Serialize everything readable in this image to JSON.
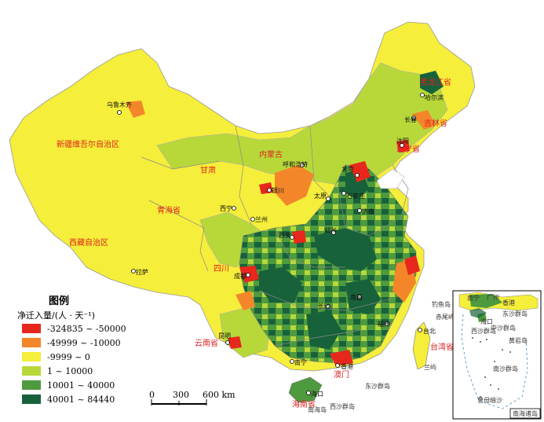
{
  "legend": {
    "title": "图例",
    "subtitle": "净迁入量/(人 · 天⁻¹)",
    "classes": [
      {
        "label": "-324835 ~ -50000",
        "color": "#e8271c"
      },
      {
        "label": "-49999 ~ -10000",
        "color": "#f4862a"
      },
      {
        "label": "-9999 ~ 0",
        "color": "#f5ee3a"
      },
      {
        "label": "1 ~ 10000",
        "color": "#b8d83a"
      },
      {
        "label": "10001 ~ 40000",
        "color": "#4e9a3e"
      },
      {
        "label": "40001 ~ 84440",
        "color": "#17623a"
      }
    ]
  },
  "scale_bar": {
    "labels": [
      "0",
      "300",
      "600 km"
    ]
  },
  "inset": {
    "title": "南海诸岛"
  },
  "province_labels": [
    {
      "id": "xinjiang",
      "text": "新疆维吾尔自治区"
    },
    {
      "id": "xizang",
      "text": "西藏自治区"
    },
    {
      "id": "qinghai",
      "text": "青海省"
    },
    {
      "id": "gansu",
      "text": "甘肃"
    },
    {
      "id": "neimenggu",
      "text": "内蒙古"
    },
    {
      "id": "heilongjiang",
      "text": "黑龙江省"
    },
    {
      "id": "jilin",
      "text": "吉林省"
    },
    {
      "id": "liaoning",
      "text": "辽宁省"
    },
    {
      "id": "sichuan",
      "text": "四川"
    },
    {
      "id": "yunnan",
      "text": "云南省"
    },
    {
      "id": "hainan",
      "text": "海南省"
    },
    {
      "id": "taiwan",
      "text": "台湾省"
    },
    {
      "id": "aomen",
      "text": "澳门"
    }
  ],
  "city_labels": [
    {
      "id": "urumqi",
      "text": "乌鲁木齐"
    },
    {
      "id": "harbin",
      "text": "哈尔滨"
    },
    {
      "id": "changchun",
      "text": "长春"
    },
    {
      "id": "shenyang",
      "text": "沈阳"
    },
    {
      "id": "hohhot",
      "text": "呼和浩特"
    },
    {
      "id": "beijing",
      "text": "北京"
    },
    {
      "id": "taiyuan",
      "text": "太原"
    },
    {
      "id": "shijiazhuang",
      "text": "石家庄"
    },
    {
      "id": "yinchuan",
      "text": "银川"
    },
    {
      "id": "xining",
      "text": "西宁"
    },
    {
      "id": "lanzhou",
      "text": "兰州"
    },
    {
      "id": "jinan",
      "text": "济南"
    },
    {
      "id": "xian",
      "text": "西安"
    },
    {
      "id": "zhengzhou",
      "text": "郑州"
    },
    {
      "id": "lasa",
      "text": "拉萨"
    },
    {
      "id": "chengdu",
      "text": "成都"
    },
    {
      "id": "nanchang",
      "text": "南昌"
    },
    {
      "id": "changsha",
      "text": "长沙"
    },
    {
      "id": "fuzhou",
      "text": "福州"
    },
    {
      "id": "taibei",
      "text": "台北"
    },
    {
      "id": "kunming",
      "text": "昆明"
    },
    {
      "id": "nanning",
      "text": "南宁"
    },
    {
      "id": "xianggang",
      "text": "香港"
    },
    {
      "id": "haikou",
      "text": "海口"
    }
  ],
  "sea_labels": [
    {
      "id": "diaoyu",
      "text": "钓鱼岛"
    },
    {
      "id": "chiwei",
      "text": "赤尾屿"
    },
    {
      "id": "lanyu",
      "text": "兰屿"
    },
    {
      "id": "dongsha",
      "text": "东沙群岛"
    },
    {
      "id": "xisha",
      "text": "西沙群岛"
    },
    {
      "id": "nanhai_island",
      "text": "南海岛"
    }
  ],
  "inset_labels": [
    {
      "id": "i1",
      "text": "南宁"
    },
    {
      "id": "i2",
      "text": "广州"
    },
    {
      "id": "i3",
      "text": "香港"
    },
    {
      "id": "i4",
      "text": "海口"
    },
    {
      "id": "i5",
      "text": "东沙群岛"
    },
    {
      "id": "i6",
      "text": "西沙群岛"
    },
    {
      "id": "i7",
      "text": "中沙群岛"
    },
    {
      "id": "i8",
      "text": "黄岩岛"
    },
    {
      "id": "i9",
      "text": "南沙群岛"
    },
    {
      "id": "i10",
      "text": "曾母暗沙"
    }
  ]
}
